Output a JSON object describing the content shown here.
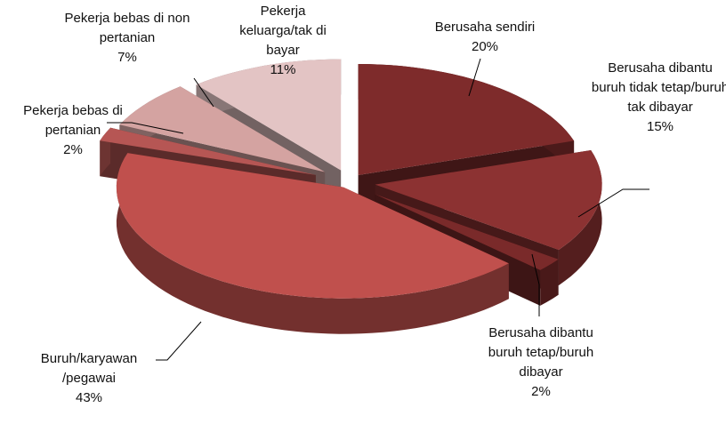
{
  "chart_data": {
    "type": "pie3d",
    "categories": [
      "Berusaha sendiri",
      "Berusaha dibantu buruh tidak tetap/buruh tak dibayar",
      "Berusaha dibantu buruh tetap/buruh dibayar",
      "Buruh/karyawan /pegawai",
      "Pekerja bebas di pertanian",
      "Pekerja bebas di non pertanian",
      "Pekerja keluarga/tak di bayar"
    ],
    "values": [
      20,
      15,
      2,
      43,
      2,
      7,
      11
    ],
    "value_labels": [
      "20%",
      "15%",
      "2%",
      "43%",
      "2%",
      "7%",
      "11%"
    ],
    "colors": [
      "#7e2b2b",
      "#8c3232",
      "#7a2a2a",
      "#c0504d",
      "#b65654",
      "#d4a3a1",
      "#e3c4c4"
    ]
  }
}
